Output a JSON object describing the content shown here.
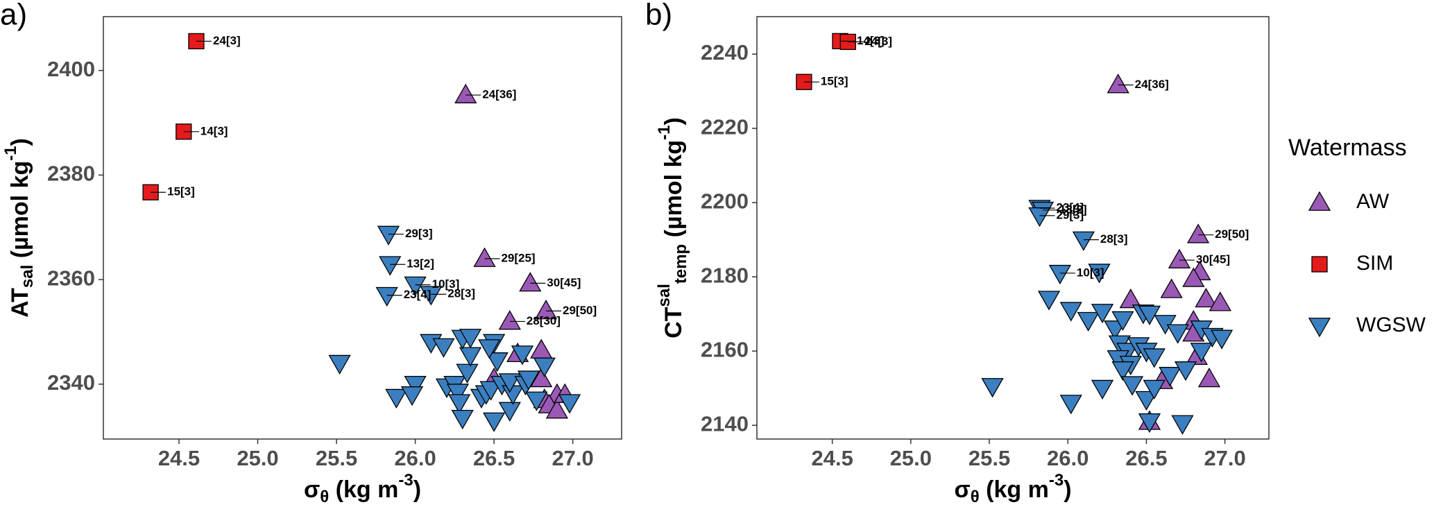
{
  "chart_data": [
    {
      "type": "scatter",
      "panel_label": "a)",
      "x_label": [
        {
          "text": "σ"
        },
        {
          "text": "θ",
          "shift": "sub"
        },
        {
          "text": " (kg m"
        },
        {
          "text": "-3",
          "shift": "super"
        },
        {
          "text": ")"
        }
      ],
      "y_label": [
        {
          "text": "AT"
        },
        {
          "text": "sal",
          "shift": "sub"
        },
        {
          "text": " (µmol kg"
        },
        {
          "text": "-1",
          "shift": "super"
        },
        {
          "text": ")"
        }
      ],
      "xlim": [
        24.02,
        27.31
      ],
      "ylim": [
        2329.5,
        2410.3
      ],
      "xticks": [
        24.5,
        {
          "value": 25,
          "label": "25.0"
        },
        25.5,
        {
          "value": 26,
          "label": "26.0"
        },
        26.5,
        {
          "value": 27,
          "label": "27.0"
        }
      ],
      "yticks": [
        2340,
        2360,
        2380,
        2400
      ],
      "series": [
        {
          "name": "AW",
          "color": "#9b59b6",
          "marker": "triangle-up",
          "x": [
            26.32,
            26.44,
            26.73,
            26.83,
            26.6,
            26.8,
            26.65,
            26.8,
            26.5,
            26.9,
            26.82,
            26.85,
            26.9,
            26.95
          ],
          "values": [
            2395.3,
            2364,
            2359.3,
            2354,
            2352,
            2346.5,
            2345.8,
            2341,
            2341,
            2338,
            2337,
            2336,
            2335,
            2338
          ],
          "point_labels": [
            "24[36]",
            "29[25]",
            "30[45]",
            "29[50]",
            "28[30]",
            null,
            null,
            null,
            null,
            null,
            null,
            null,
            null,
            null
          ]
        },
        {
          "name": "SIM",
          "color": "#e41a1c",
          "marker": "square",
          "x": [
            24.61,
            24.53,
            24.32
          ],
          "values": [
            2405.6,
            2388.3,
            2376.7
          ],
          "point_labels": [
            "24[3]",
            "14[3]",
            "15[3]"
          ]
        },
        {
          "name": "WGSW",
          "color": "#3b7fc0",
          "marker": "triangle-down",
          "x": [
            25.83,
            25.84,
            26.0,
            25.82,
            26.1,
            25.52,
            25.88,
            26.0,
            25.98,
            26.1,
            26.18,
            26.2,
            26.25,
            26.27,
            26.28,
            26.3,
            26.33,
            26.35,
            26.3,
            26.35,
            26.42,
            26.45,
            26.48,
            26.5,
            26.5,
            26.52,
            26.47,
            26.55,
            26.6,
            26.62,
            26.6,
            26.68,
            26.7,
            26.72,
            26.77,
            26.82,
            26.98
          ],
          "values": [
            2368.7,
            2362.9,
            2359,
            2357,
            2357.2,
            2344,
            2337.5,
            2340,
            2338,
            2348,
            2347.2,
            2339.5,
            2340,
            2338.5,
            2336.5,
            2333.5,
            2342.3,
            2345.5,
            2348.8,
            2349,
            2337.5,
            2338.2,
            2339,
            2333,
            2348,
            2344.5,
            2347,
            2340,
            2335,
            2338.2,
            2340.5,
            2345.8,
            2340,
            2341,
            2337,
            2343.5,
            2336.5
          ],
          "point_labels": [
            "29[3]",
            "13[2]",
            "10[3]",
            "23[4]",
            "28[3]",
            null,
            null,
            null,
            null,
            null,
            null,
            null,
            null,
            null,
            null,
            null,
            null,
            null,
            null,
            null,
            null,
            null,
            null,
            null,
            null,
            null,
            null,
            null,
            null,
            null,
            null,
            null,
            null,
            null,
            null,
            null,
            null
          ]
        }
      ]
    },
    {
      "type": "scatter",
      "panel_label": "b)",
      "x_label": [
        {
          "text": "σ"
        },
        {
          "text": "θ",
          "shift": "sub"
        },
        {
          "text": " (kg m"
        },
        {
          "text": "-3",
          "shift": "super"
        },
        {
          "text": ")"
        }
      ],
      "y_label": [
        {
          "text": "CT"
        },
        {
          "text": "sal",
          "shift": "super"
        },
        {
          "text": "temp",
          "shift": "sub"
        },
        {
          "text": " (µmol kg"
        },
        {
          "text": "-1",
          "shift": "super"
        },
        {
          "text": ")"
        }
      ],
      "xlim": [
        24.02,
        27.28
      ],
      "ylim": [
        2136.3,
        2250.1
      ],
      "xticks": [
        24.5,
        {
          "value": 25,
          "label": "25.0"
        },
        25.5,
        {
          "value": 26,
          "label": "26.0"
        },
        26.5,
        {
          "value": 27,
          "label": "27.0"
        }
      ],
      "yticks": [
        2140,
        2160,
        2180,
        2200,
        2220,
        2240
      ],
      "legend": {
        "title": "Watermass"
      },
      "series": [
        {
          "name": "AW",
          "color": "#9b59b6",
          "marker": "triangle-up",
          "x": [
            26.32,
            26.83,
            26.71,
            26.84,
            26.8,
            26.66,
            26.4,
            26.88,
            26.97,
            26.8,
            26.8,
            26.82,
            26.9,
            26.6,
            26.52
          ],
          "values": [
            2231.7,
            2191.3,
            2184.5,
            2181.3,
            2179.5,
            2176.5,
            2173.8,
            2174,
            2173,
            2168,
            2164.8,
            2158.5,
            2152.5,
            2152,
            2141
          ],
          "point_labels": [
            "24[36]",
            "29[50]",
            "30[45]",
            null,
            null,
            null,
            null,
            null,
            null,
            null,
            null,
            null,
            null,
            null,
            null
          ]
        },
        {
          "name": "SIM",
          "color": "#e41a1c",
          "marker": "square",
          "x": [
            24.55,
            24.6,
            24.32
          ],
          "values": [
            2243.5,
            2243.3,
            2232.5
          ],
          "point_labels": [
            "14[3]",
            "24[3]",
            "15[3]"
          ]
        },
        {
          "name": "WGSW",
          "color": "#3b7fc0",
          "marker": "triangle-down",
          "x": [
            25.82,
            25.84,
            25.82,
            26.1,
            25.95,
            26.2,
            25.88,
            26.02,
            26.13,
            26.22,
            26.3,
            26.35,
            26.48,
            26.52,
            26.62,
            26.7,
            26.85,
            26.92,
            26.98,
            26.33,
            26.38,
            26.45,
            26.5,
            26.32,
            26.4,
            26.35,
            26.55,
            26.65,
            26.75,
            26.85,
            26.5,
            26.55,
            26.41,
            26.22,
            26.02,
            25.52,
            26.52,
            26.73
          ],
          "values": [
            2198.5,
            2198,
            2196.5,
            2190,
            2181,
            2181.3,
            2174,
            2171,
            2168.3,
            2170.5,
            2166,
            2168.5,
            2170.3,
            2170,
            2167.5,
            2165,
            2166,
            2164,
            2163.5,
            2162,
            2160,
            2161.5,
            2160,
            2158,
            2156.5,
            2155,
            2158.5,
            2153.5,
            2155,
            2160,
            2147,
            2150,
            2151,
            2150,
            2146,
            2150.5,
            2141,
            2140.5
          ],
          "point_labels": [
            "23[4]",
            "13[2]",
            "29[3]",
            "28[3]",
            "10[3]",
            null,
            null,
            null,
            null,
            null,
            null,
            null,
            null,
            null,
            null,
            null,
            null,
            null,
            null,
            null,
            null,
            null,
            null,
            null,
            null,
            null,
            null,
            null,
            null,
            null,
            null,
            null,
            null,
            null,
            null,
            null,
            null,
            null
          ]
        }
      ]
    }
  ]
}
